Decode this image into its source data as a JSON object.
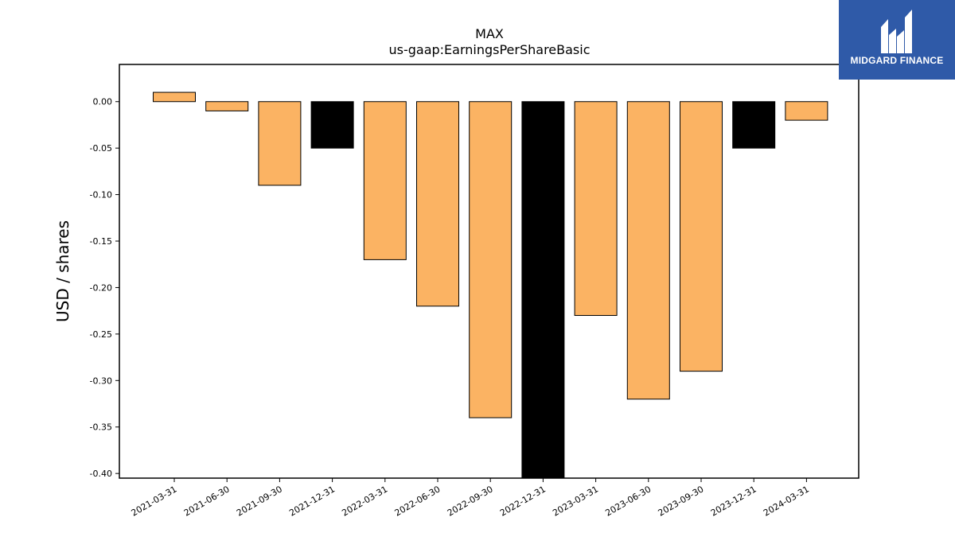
{
  "chart_data": {
    "type": "bar",
    "title": "MAX",
    "subtitle": "us-gaap:EarningsPerShareBasic",
    "xlabel": "",
    "ylabel": "USD / shares",
    "categories": [
      "2021-03-31",
      "2021-06-30",
      "2021-09-30",
      "2021-12-31",
      "2022-03-31",
      "2022-06-30",
      "2022-09-30",
      "2022-12-31",
      "2023-03-31",
      "2023-06-30",
      "2023-09-30",
      "2023-12-31",
      "2024-03-31"
    ],
    "values": [
      0.01,
      -0.01,
      -0.09,
      -0.05,
      -0.17,
      -0.22,
      -0.34,
      -0.41,
      -0.23,
      -0.32,
      -0.29,
      -0.05,
      -0.02
    ],
    "bar_colors": [
      "#fbb363",
      "#fbb363",
      "#fbb363",
      "#000000",
      "#fbb363",
      "#fbb363",
      "#fbb363",
      "#000000",
      "#fbb363",
      "#fbb363",
      "#fbb363",
      "#000000",
      "#fbb363"
    ],
    "yticks": [
      "0.00",
      "-0.05",
      "-0.10",
      "-0.15",
      "-0.20",
      "-0.25",
      "-0.30",
      "-0.35",
      "-0.40"
    ],
    "ylim": [
      -0.405,
      0.04
    ],
    "grid": false,
    "legend": "none"
  },
  "logo": {
    "text": "MIDGARD FINANCE",
    "background": "#2f5aa8"
  }
}
